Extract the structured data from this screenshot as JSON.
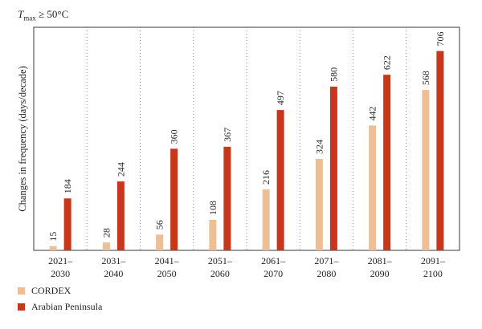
{
  "chart_data": {
    "type": "bar",
    "title_var": "T",
    "title_sub": "max",
    "title_rest": " ≥ 50°C",
    "ylabel": "Changes in frequency (days/decade)",
    "xlabel": "",
    "categories": [
      [
        "2021–",
        "2030"
      ],
      [
        "2031–",
        "2040"
      ],
      [
        "2041–",
        "2050"
      ],
      [
        "2051–",
        "2060"
      ],
      [
        "2061–",
        "2070"
      ],
      [
        "2071–",
        "2080"
      ],
      [
        "2081–",
        "2090"
      ],
      [
        "2091–",
        "2100"
      ]
    ],
    "series": [
      {
        "name": "CORDEX",
        "color": "#eebe95",
        "values": [
          15,
          28,
          56,
          108,
          216,
          324,
          442,
          568
        ]
      },
      {
        "name": "Arabian Peninsula",
        "color": "#c8361c",
        "values": [
          184,
          244,
          360,
          367,
          497,
          580,
          622,
          706
        ]
      }
    ],
    "ylim": [
      0,
      790
    ],
    "grid": "vertical dotted separators between periods",
    "legend": "bottom-left"
  }
}
